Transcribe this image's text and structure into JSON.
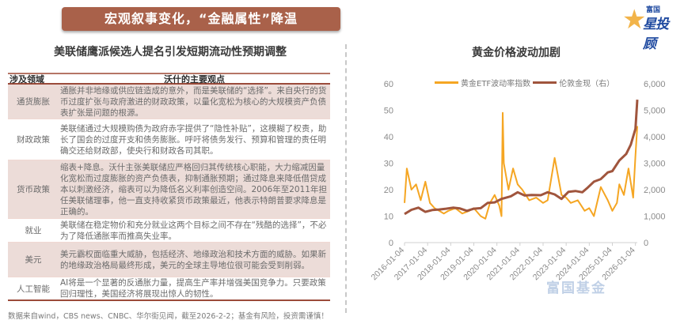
{
  "header": {
    "title": "宏观叙事变化，“金融属性”降温",
    "logo_small": "富国",
    "logo_big": "星投顾",
    "banner_color": "#a9614a"
  },
  "left_panel": {
    "title": "美联储鹰派候选人提名引发短期流动性预期调整",
    "table": {
      "columns": [
        "涉及领域",
        "沃什的主要观点"
      ],
      "rows": [
        {
          "field": "通货膨胀",
          "view": "通胀并非地缘或供应链造成的意外，而是美联储的“选择”。来自央行的货币过度扩张与政府激进的财政政策，以量化宽松为核心的大规模资产负债表扩张是问题的根源。",
          "shaded": true
        },
        {
          "field": "财政政策",
          "view": "美联储通过大规模购债为政府赤字提供了“隐性补贴”，这模糊了权责，助长了国会的过度开支和债务膨胀。呼吁将债务发行、预算和管理的责任明确交还给财政部，使央行和财政各司其职。",
          "shaded": false
        },
        {
          "field": "货币政策",
          "view": "缩表+降息。沃什主张美联储应严格回归其传统核心职能，大力缩减因量化宽松而过度膨胀的资产负债表，抑制通胀预期；通过降息来降低借贷成本以刺激经济，缩表可以为降低名义利率创造空间。2006年至2011年担任美联储理事，他一直支持收紧货币政策最近，他表示特朗普要求降息是正确的。",
          "shaded": true
        },
        {
          "field": "就业",
          "view": "美联储在稳定物价和充分就业这两个目标之间不存在“残酷的选择”，不必为了降低通胀率而推高失业率。",
          "shaded": false
        },
        {
          "field": "美元",
          "view": "美元霸权面临重大威胁，包括经济、地缘政治和技术方面的威胁。如果新的地缘政治格局最终形成，美元的全球主导地位很可能会受到削弱。",
          "shaded": true
        },
        {
          "field": "人工智能",
          "view": "AI将是一个显著的反通胀力量，提高生产率并增强美国竞争力。只要政策回归理性，美国经济将展现出惊人的韧性。",
          "shaded": false
        }
      ]
    }
  },
  "footnote": "数据来自wind，CBS news、CNBC、华尔街见闻，截至2026-2-2；基金有风险，投资需谨慎！",
  "right_panel": {
    "watermark": "富国基金"
  },
  "chart_data": {
    "type": "line",
    "title": "黄金价格波动加剧",
    "x_tick_labels": [
      "2016-01-04",
      "2017-01-04",
      "2018-01-04",
      "2019-01-04",
      "2020-01-04",
      "2021-01-04",
      "2022-01-04",
      "2023-01-04",
      "2024-01-04",
      "2025-01-04",
      "2026-01-04"
    ],
    "left_axis": {
      "label": "",
      "ticks": [
        "0",
        "10",
        "20",
        "30",
        "40",
        "50",
        "60"
      ],
      "ylim": [
        0,
        60
      ]
    },
    "right_axis": {
      "label": "",
      "ticks": [
        "0",
        "1,000",
        "2,000",
        "3,000",
        "4,000",
        "5,000",
        "6,000"
      ],
      "ylim": [
        0,
        6000
      ]
    },
    "legend": [
      "黄金ETF波动率指数",
      "伦敦金现（右）"
    ],
    "legend_position": "top",
    "grid": false,
    "series": [
      {
        "name": "黄金ETF波动率指数",
        "axis": "left",
        "color": "#f5a623",
        "x": [
          2016.0,
          2016.1,
          2016.3,
          2016.5,
          2016.7,
          2016.9,
          2017.1,
          2017.3,
          2017.5,
          2017.7,
          2017.9,
          2018.2,
          2018.5,
          2018.8,
          2019.0,
          2019.3,
          2019.5,
          2019.7,
          2019.9,
          2020.1,
          2020.2,
          2020.25,
          2020.3,
          2020.5,
          2020.7,
          2020.9,
          2021.1,
          2021.4,
          2021.7,
          2022.0,
          2022.2,
          2022.5,
          2022.8,
          2023.0,
          2023.2,
          2023.5,
          2023.8,
          2024.0,
          2024.2,
          2024.5,
          2024.8,
          2025.0,
          2025.2,
          2025.3,
          2025.5,
          2025.7,
          2025.9,
          2026.0,
          2026.08
        ],
        "values": [
          15,
          28,
          20,
          22,
          16,
          23,
          15,
          13,
          12,
          11,
          12,
          13,
          11,
          12,
          13,
          10,
          9,
          15,
          18,
          14,
          10,
          49,
          30,
          20,
          28,
          22,
          20,
          16,
          17,
          15,
          16,
          32,
          18,
          17,
          15,
          16,
          12,
          13,
          10,
          21,
          16,
          12,
          15,
          22,
          18,
          28,
          17,
          33,
          44
        ]
      },
      {
        "name": "伦敦金现（右）",
        "axis": "right",
        "color": "#a0553d",
        "x": [
          2016.0,
          2016.3,
          2016.6,
          2016.9,
          2017.2,
          2017.5,
          2017.8,
          2018.1,
          2018.4,
          2018.7,
          2019.0,
          2019.3,
          2019.6,
          2019.9,
          2020.2,
          2020.6,
          2020.9,
          2021.2,
          2021.5,
          2021.9,
          2022.2,
          2022.5,
          2022.8,
          2023.1,
          2023.4,
          2023.7,
          2023.9,
          2024.2,
          2024.5,
          2024.8,
          2025.0,
          2025.3,
          2025.6,
          2025.8,
          2026.0,
          2026.08
        ],
        "values": [
          1080,
          1240,
          1320,
          1160,
          1230,
          1250,
          1280,
          1320,
          1290,
          1200,
          1280,
          1300,
          1500,
          1520,
          1650,
          1750,
          1900,
          1780,
          1800,
          1790,
          1900,
          1820,
          1650,
          1920,
          1950,
          1900,
          2050,
          2300,
          2400,
          2650,
          2700,
          3100,
          3350,
          3700,
          4300,
          5400
        ]
      }
    ]
  }
}
